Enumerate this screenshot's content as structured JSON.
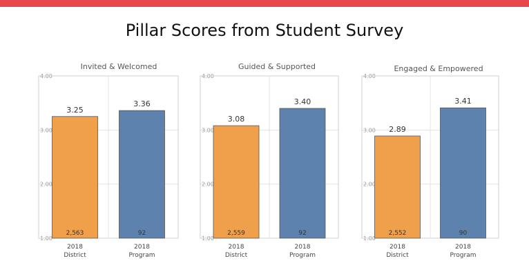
{
  "title": "Pillar Scores from Student Survey",
  "colors": {
    "accent_bar": "#e8484b",
    "district": "#f0a04b",
    "program": "#5e82ae"
  },
  "chart_data": [
    {
      "type": "bar",
      "title": "Invited & Welcomed",
      "categories": [
        [
          "2018",
          "District"
        ],
        [
          "2018",
          "Program"
        ]
      ],
      "values": [
        3.25,
        3.36
      ],
      "value_labels": [
        "3.25",
        "3.36"
      ],
      "n_labels": [
        "2,563",
        "92"
      ],
      "ylim": [
        1,
        4
      ],
      "yticks": [
        "1.00",
        "2.00",
        "3.00",
        "4.00"
      ],
      "grid": true,
      "colors": [
        "#f0a04b",
        "#5e82ae"
      ]
    },
    {
      "type": "bar",
      "title": "Guided & Supported",
      "categories": [
        [
          "2018",
          "District"
        ],
        [
          "2018",
          "Program"
        ]
      ],
      "values": [
        3.08,
        3.4
      ],
      "value_labels": [
        "3.08",
        "3.40"
      ],
      "n_labels": [
        "2,559",
        "92"
      ],
      "ylim": [
        1,
        4
      ],
      "yticks": [
        "1.00",
        "2.00",
        "3.00",
        "4.00"
      ],
      "grid": true,
      "colors": [
        "#f0a04b",
        "#5e82ae"
      ]
    },
    {
      "type": "bar",
      "title": "Engaged & Empowered",
      "categories": [
        [
          "2018",
          "District"
        ],
        [
          "2018",
          "Program"
        ]
      ],
      "values": [
        2.89,
        3.41
      ],
      "value_labels": [
        "2.89",
        "3.41"
      ],
      "n_labels": [
        "2,552",
        "90"
      ],
      "ylim": [
        1,
        4
      ],
      "yticks": [
        "1.00",
        "2.00",
        "3.00",
        "4.00"
      ],
      "grid": true,
      "colors": [
        "#f0a04b",
        "#5e82ae"
      ]
    }
  ]
}
